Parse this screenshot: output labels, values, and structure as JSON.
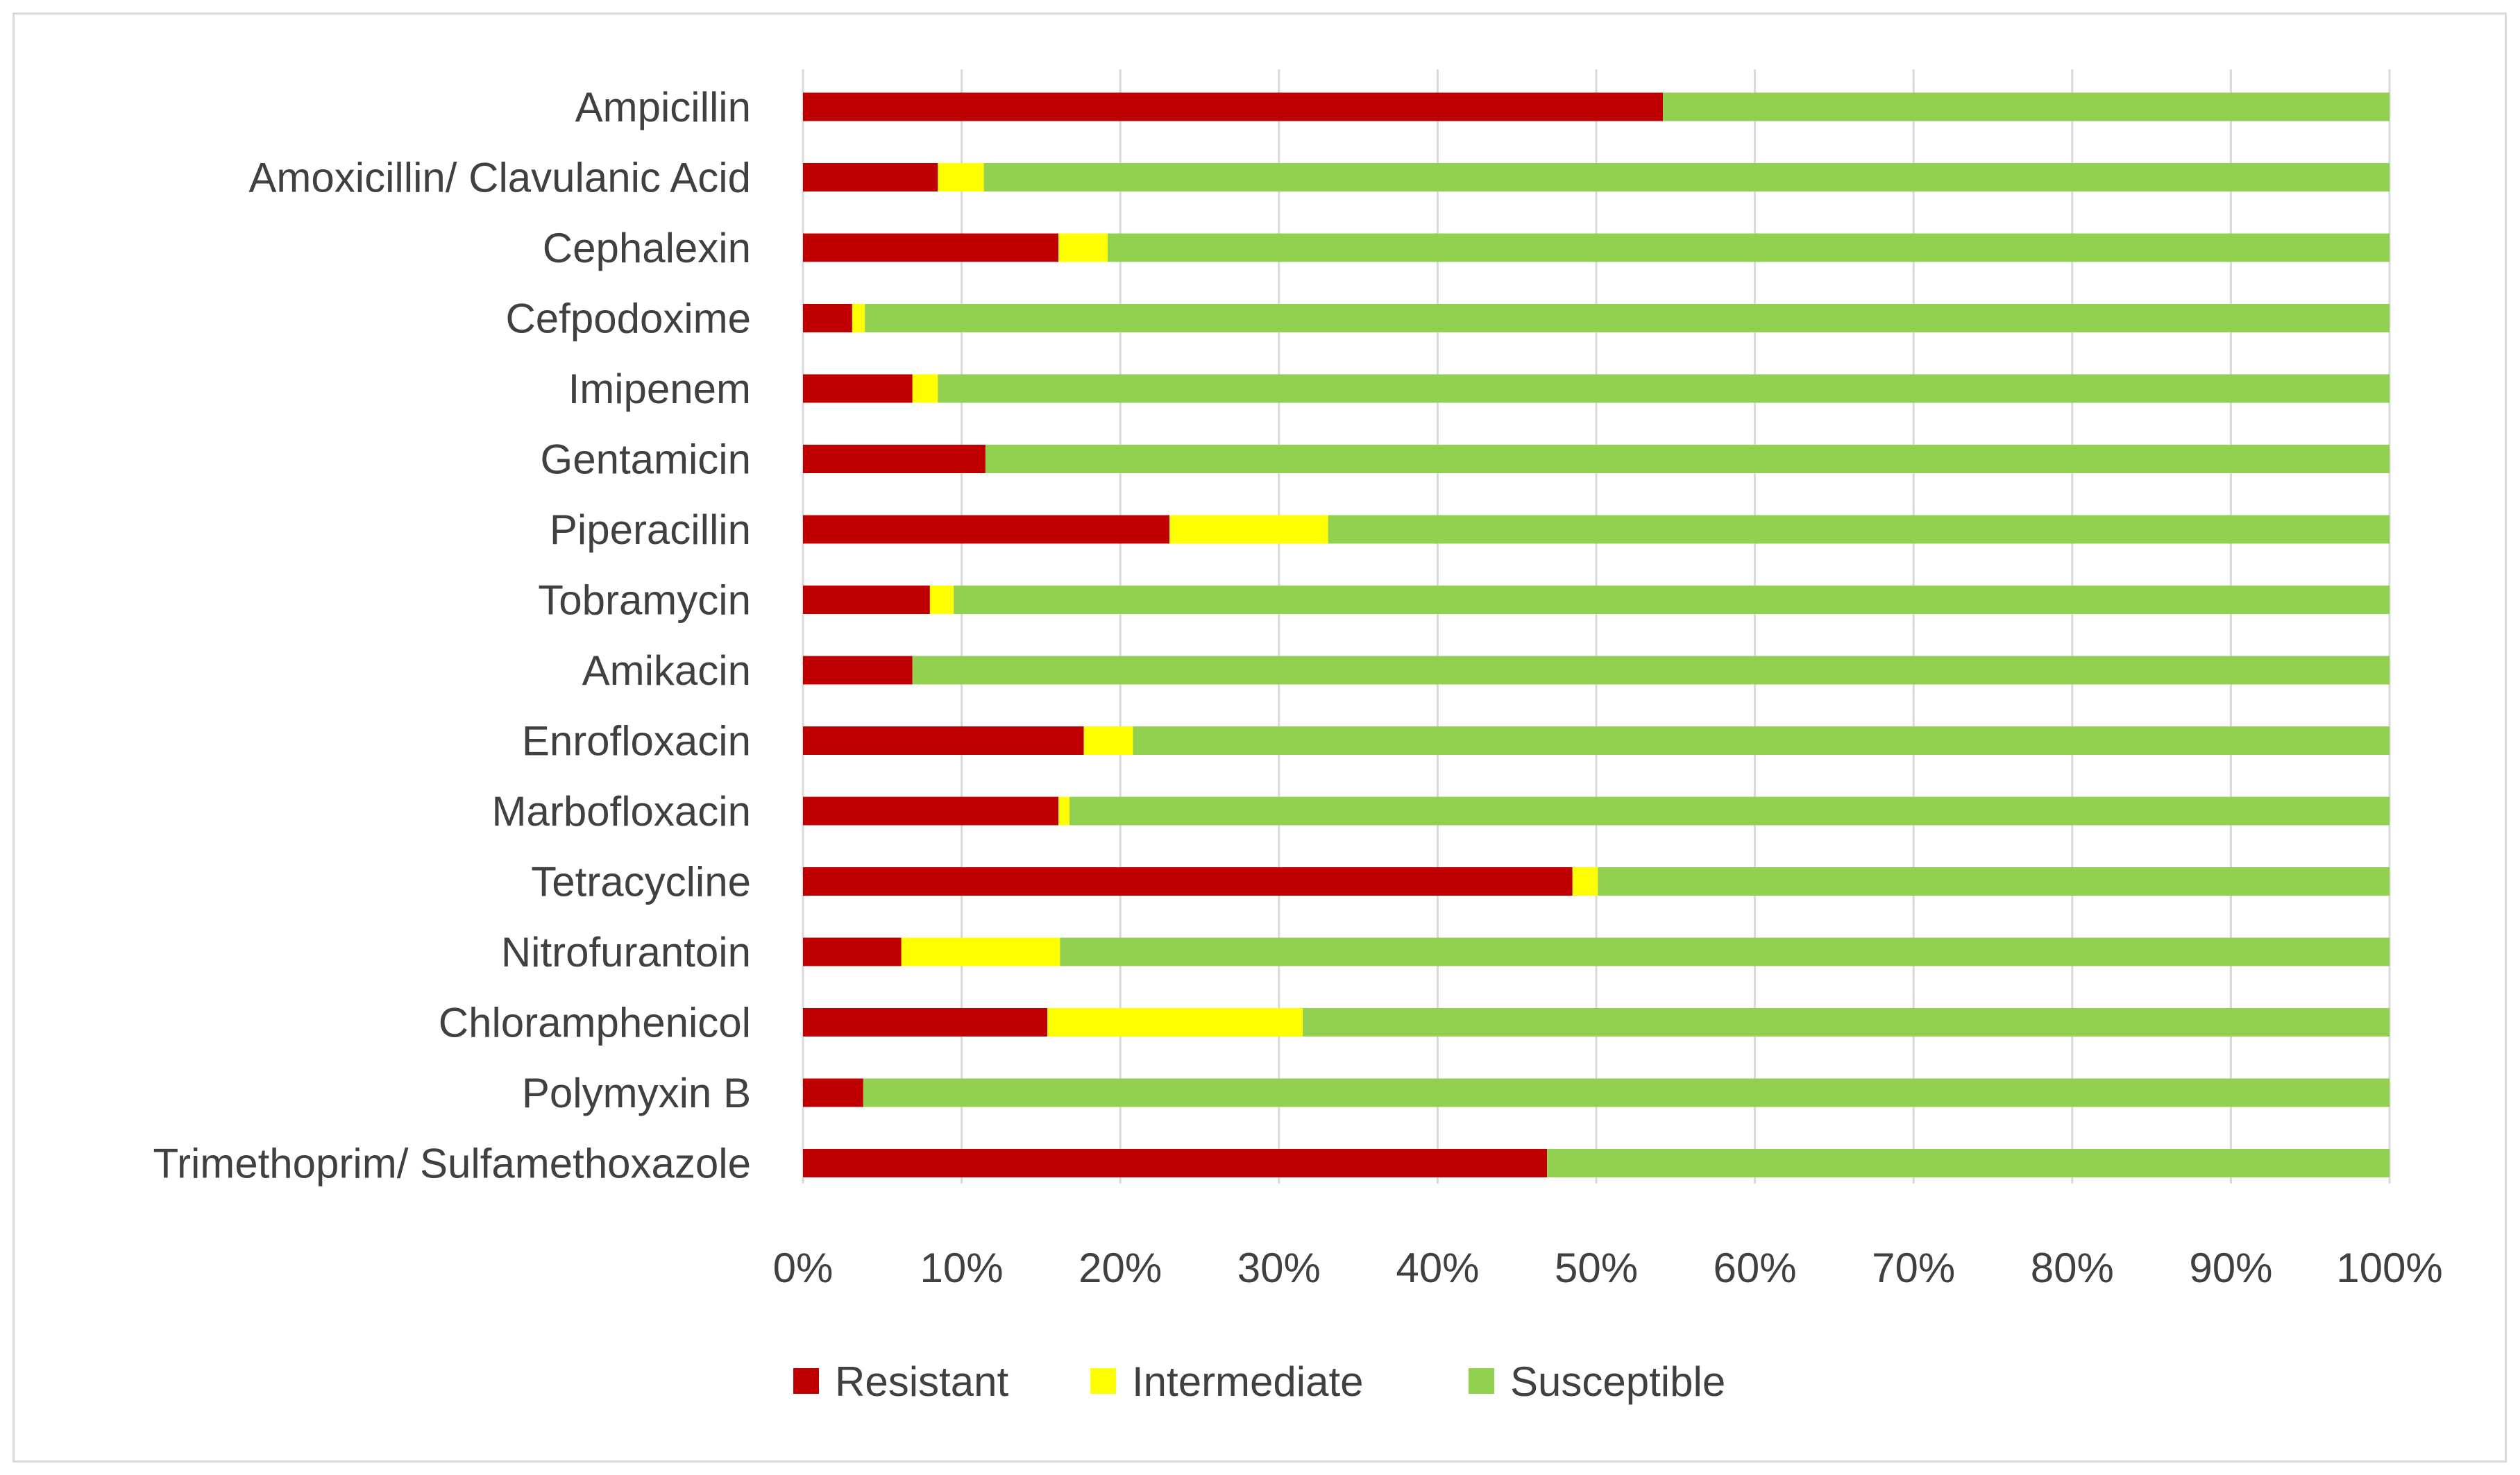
{
  "chart_data": {
    "type": "bar",
    "orientation": "horizontal",
    "stacked": "percent",
    "title": "",
    "xlabel": "",
    "ylabel": "",
    "xlim": [
      0,
      100
    ],
    "x_ticks": [
      "0%",
      "10%",
      "20%",
      "30%",
      "40%",
      "50%",
      "60%",
      "70%",
      "80%",
      "90%",
      "100%"
    ],
    "grid": "vertical major gridlines",
    "legend_position": "bottom",
    "categories": [
      "Ampicillin",
      "Amoxicillin/ Clavulanic Acid",
      "Cephalexin",
      "Cefpodoxime",
      "Imipenem",
      "Gentamicin",
      "Piperacillin",
      "Tobramycin",
      "Amikacin",
      "Enrofloxacin",
      "Marbofloxacin",
      "Tetracycline",
      "Nitrofurantoin",
      "Chloramphenicol",
      "Polymyxin B",
      "Trimethoprim/ Sulfamethoxazole"
    ],
    "series": [
      {
        "name": "Resistant",
        "color": "#c00000",
        "values": [
          54.2,
          8.5,
          16.1,
          3.1,
          6.9,
          11.5,
          23.1,
          8.0,
          6.9,
          17.7,
          16.1,
          48.5,
          6.2,
          15.4,
          3.8,
          46.9
        ]
      },
      {
        "name": "Intermediate",
        "color": "#ffff00",
        "values": [
          0,
          2.9,
          3.1,
          0.8,
          1.6,
          0,
          10.0,
          1.5,
          0,
          3.1,
          0.7,
          1.6,
          10.0,
          16.1,
          0,
          0
        ]
      },
      {
        "name": "Susceptible",
        "color": "#92d050",
        "values": [
          45.8,
          88.6,
          80.8,
          96.1,
          91.5,
          88.5,
          66.9,
          90.5,
          93.1,
          79.2,
          83.2,
          49.9,
          83.8,
          68.5,
          96.2,
          53.1
        ]
      }
    ],
    "colors": {
      "gridline": "#d9d9d9",
      "text": "#404040",
      "frame": "#d9d9d9"
    }
  }
}
